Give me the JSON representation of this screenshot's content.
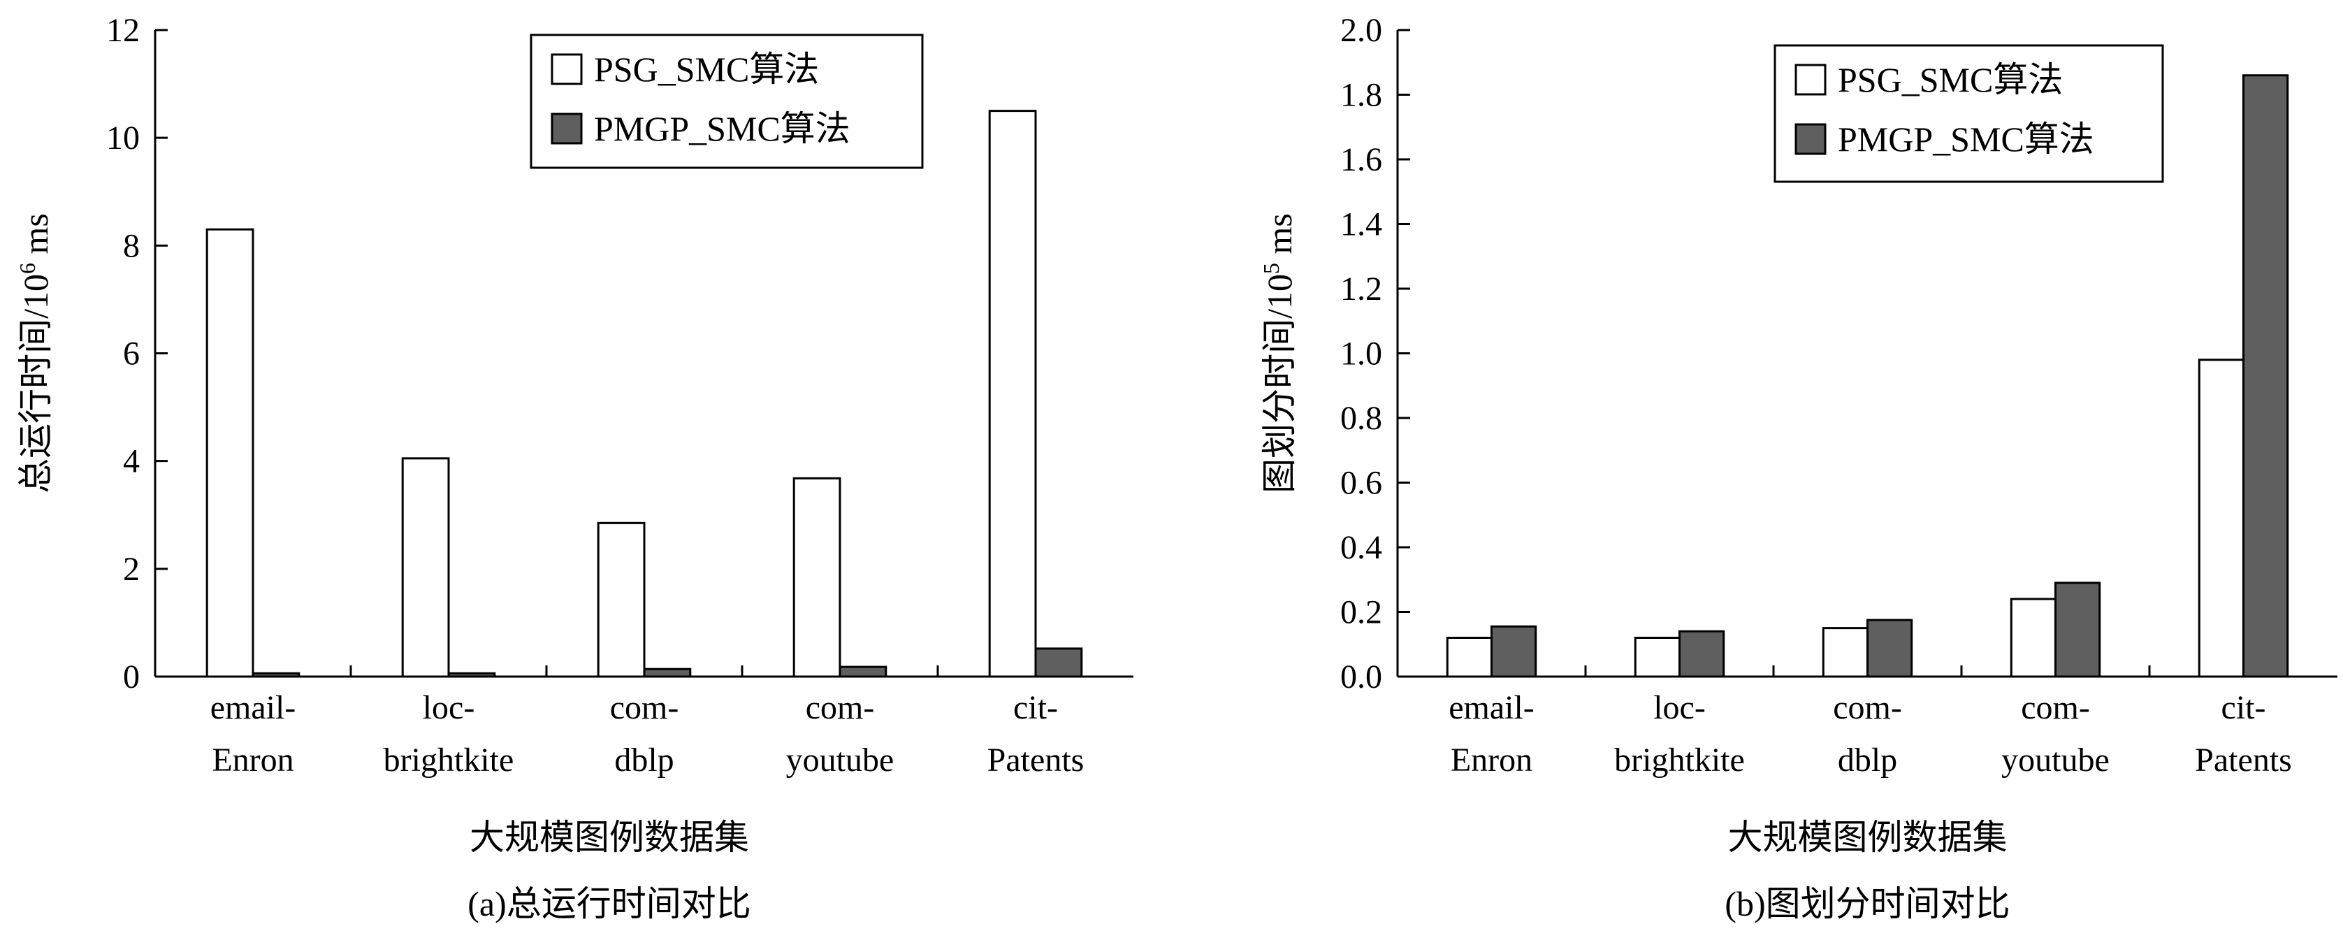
{
  "chart_data": [
    {
      "type": "bar",
      "title": "(a)总运行时间对比",
      "xlabel": "大规模图例数据集",
      "ylabel": "总运行时间/10",
      "ylabel_sup": "6",
      "ylabel_unit": " ms",
      "categories": [
        [
          "email-",
          "Enron"
        ],
        [
          "loc-",
          "brightkite"
        ],
        [
          "com-",
          "dblp"
        ],
        [
          "com-",
          "youtube"
        ],
        [
          "cit-",
          "Patents"
        ]
      ],
      "ylim": [
        0,
        12
      ],
      "yticks": [
        "0",
        "2",
        "4",
        "6",
        "8",
        "10",
        "12"
      ],
      "legend_position": "top-right",
      "series": [
        {
          "name": "PSG_SMC算法",
          "color": "#ffffff",
          "values": [
            8.3,
            4.05,
            2.85,
            3.68,
            10.5
          ]
        },
        {
          "name": "PMGP_SMC算法",
          "color": "#5f5f5f",
          "values": [
            0.06,
            0.06,
            0.14,
            0.18,
            0.52
          ]
        }
      ]
    },
    {
      "type": "bar",
      "title": "(b)图划分时间对比",
      "xlabel": "大规模图例数据集",
      "ylabel": "图划分时间/10",
      "ylabel_sup": "5",
      "ylabel_unit": " ms",
      "categories": [
        [
          "email-",
          "Enron"
        ],
        [
          "loc-",
          "brightkite"
        ],
        [
          "com-",
          "dblp"
        ],
        [
          "com-",
          "youtube"
        ],
        [
          "cit-",
          "Patents"
        ]
      ],
      "ylim": [
        0,
        2.0
      ],
      "yticks": [
        "0.0",
        "0.2",
        "0.4",
        "0.6",
        "0.8",
        "1.0",
        "1.2",
        "1.4",
        "1.6",
        "1.8",
        "2.0"
      ],
      "legend_position": "top-right",
      "series": [
        {
          "name": "PSG_SMC算法",
          "color": "#ffffff",
          "values": [
            0.12,
            0.12,
            0.15,
            0.24,
            0.98
          ]
        },
        {
          "name": "PMGP_SMC算法",
          "color": "#5f5f5f",
          "values": [
            0.155,
            0.14,
            0.175,
            0.29,
            1.86
          ]
        }
      ]
    }
  ]
}
